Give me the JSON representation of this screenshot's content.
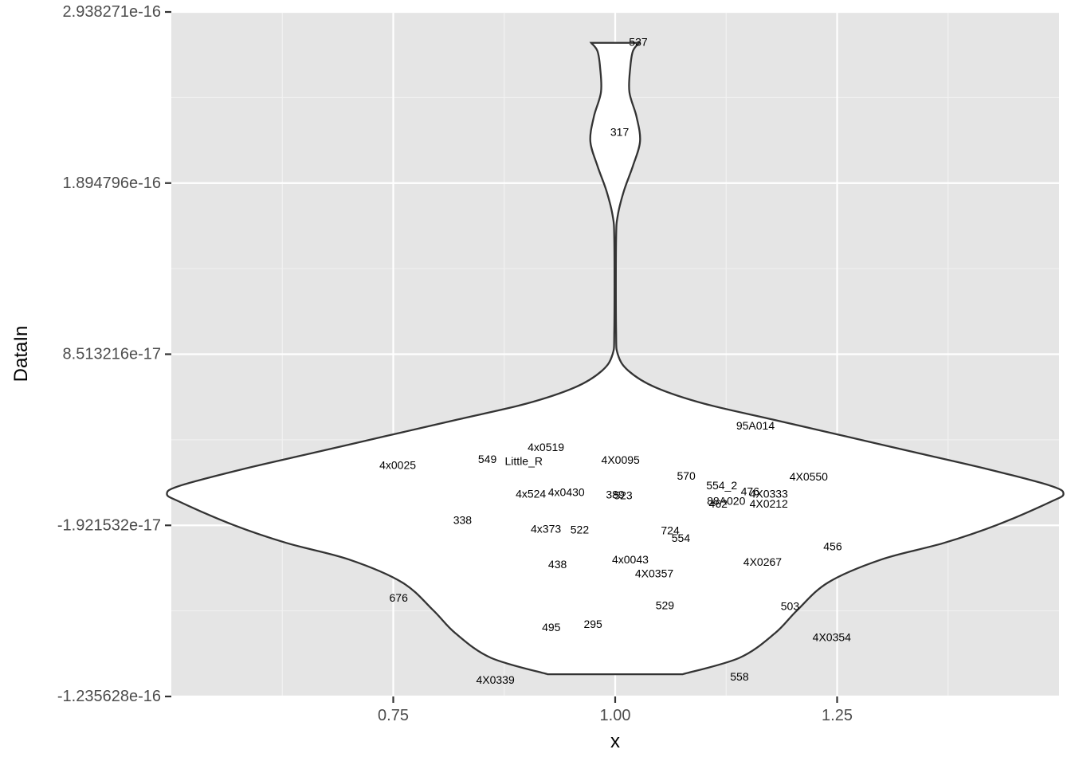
{
  "chart_data": {
    "type": "violin",
    "title": "",
    "xlabel": "x",
    "ylabel": "DataIn",
    "xlim": [
      0.5,
      1.5
    ],
    "ylim": [
      -1.235628e-16,
      2.938271e-16
    ],
    "x_ticks": [
      {
        "value": 0.75,
        "label": "0.75"
      },
      {
        "value": 1.0,
        "label": "1.00"
      },
      {
        "value": 1.25,
        "label": "1.25"
      }
    ],
    "y_ticks": [
      {
        "value": -1.235628e-16,
        "label": "-1.235628e-16"
      },
      {
        "value": -1.921532e-17,
        "label": "-1.921532e-17"
      },
      {
        "value": 8.513216e-17,
        "label": "8.513216e-17"
      },
      {
        "value": 1.894796e-16,
        "label": "1.894796e-16"
      },
      {
        "value": 2.938271e-16,
        "label": "2.938271e-16"
      }
    ],
    "violin": {
      "center_x": 1.0,
      "profile": [
        {
          "y": -1.1e-16,
          "w": 0.076
        },
        {
          "y": -1e-16,
          "w": 0.14
        },
        {
          "y": -8.5e-17,
          "w": 0.18
        },
        {
          "y": -7.1e-17,
          "w": 0.205
        },
        {
          "y": -5.4e-17,
          "w": 0.24
        },
        {
          "y": -4e-17,
          "w": 0.3
        },
        {
          "y": -3e-17,
          "w": 0.37
        },
        {
          "y": -1.9e-17,
          "w": 0.43
        },
        {
          "y": -5e-18,
          "w": 0.49
        },
        {
          "y": 0.0,
          "w": 0.505
        },
        {
          "y": 5e-18,
          "w": 0.49
        },
        {
          "y": 1.5e-17,
          "w": 0.42
        },
        {
          "y": 2.5e-17,
          "w": 0.34
        },
        {
          "y": 3.5e-17,
          "w": 0.26
        },
        {
          "y": 4.5e-17,
          "w": 0.18
        },
        {
          "y": 5.5e-17,
          "w": 0.1
        },
        {
          "y": 6.5e-17,
          "w": 0.045
        },
        {
          "y": 7.5e-17,
          "w": 0.015
        },
        {
          "y": 8.5e-17,
          "w": 0.003
        },
        {
          "y": 1e-16,
          "w": 0.001
        },
        {
          "y": 1.55e-16,
          "w": 0.001
        },
        {
          "y": 1.7e-16,
          "w": 0.003
        },
        {
          "y": 1.85e-16,
          "w": 0.01
        },
        {
          "y": 2e-16,
          "w": 0.02
        },
        {
          "y": 2.15e-16,
          "w": 0.028
        },
        {
          "y": 2.3e-16,
          "w": 0.024
        },
        {
          "y": 2.45e-16,
          "w": 0.016
        },
        {
          "y": 2.6e-16,
          "w": 0.017
        },
        {
          "y": 2.7e-16,
          "w": 0.02
        },
        {
          "y": 2.75e-16,
          "w": 0.027
        }
      ]
    },
    "points": [
      {
        "label": "537",
        "x": 1.026,
        "y": 2.75e-16
      },
      {
        "label": "317",
        "x": 1.005,
        "y": 2.2e-16
      },
      {
        "label": "95A014",
        "x": 1.158,
        "y": 4.1e-17
      },
      {
        "label": "4x0519",
        "x": 0.922,
        "y": 2.8e-17
      },
      {
        "label": "549",
        "x": 0.856,
        "y": 2.05e-17
      },
      {
        "label": "Little_R",
        "x": 0.897,
        "y": 1.95e-17
      },
      {
        "label": "4X0095",
        "x": 1.006,
        "y": 2e-17
      },
      {
        "label": "4x0025",
        "x": 0.755,
        "y": 1.7e-17
      },
      {
        "label": "570",
        "x": 1.08,
        "y": 1.05e-17
      },
      {
        "label": "4X0550",
        "x": 1.218,
        "y": 1e-17
      },
      {
        "label": "554_2",
        "x": 1.12,
        "y": 4.5e-18
      },
      {
        "label": "476",
        "x": 1.152,
        "y": 1e-18
      },
      {
        "label": "4X0333",
        "x": 1.173,
        "y": -5e-19
      },
      {
        "label": "4x524",
        "x": 0.905,
        "y": -5e-19
      },
      {
        "label": "4x0430",
        "x": 0.945,
        "y": 5e-19
      },
      {
        "label": "389",
        "x": 1.0,
        "y": -1e-18
      },
      {
        "label": "523",
        "x": 1.009,
        "y": -1.5e-18
      },
      {
        "label": "88A020",
        "x": 1.125,
        "y": -5e-18
      },
      {
        "label": "462",
        "x": 1.116,
        "y": -6.5e-18
      },
      {
        "label": "4X0212",
        "x": 1.173,
        "y": -6.5e-18
      },
      {
        "label": "338",
        "x": 0.828,
        "y": -1.65e-17
      },
      {
        "label": "4x373",
        "x": 0.922,
        "y": -2.2e-17
      },
      {
        "label": "522",
        "x": 0.96,
        "y": -2.25e-17
      },
      {
        "label": "724",
        "x": 1.062,
        "y": -2.3e-17
      },
      {
        "label": "554",
        "x": 1.074,
        "y": -2.75e-17
      },
      {
        "label": "456",
        "x": 1.245,
        "y": -3.25e-17
      },
      {
        "label": "438",
        "x": 0.935,
        "y": -4.35e-17
      },
      {
        "label": "4x0043",
        "x": 1.017,
        "y": -4.05e-17
      },
      {
        "label": "4X0267",
        "x": 1.166,
        "y": -4.2e-17
      },
      {
        "label": "4X0357",
        "x": 1.044,
        "y": -4.9e-17
      },
      {
        "label": "676",
        "x": 0.756,
        "y": -6.4e-17
      },
      {
        "label": "529",
        "x": 1.056,
        "y": -6.85e-17
      },
      {
        "label": "503",
        "x": 1.197,
        "y": -6.9e-17
      },
      {
        "label": "495",
        "x": 0.928,
        "y": -8.2e-17
      },
      {
        "label": "295",
        "x": 0.975,
        "y": -8e-17
      },
      {
        "label": "4X0354",
        "x": 1.244,
        "y": -8.8e-17
      },
      {
        "label": "4X0339",
        "x": 0.865,
        "y": -1.14e-16
      },
      {
        "label": "558",
        "x": 1.14,
        "y": -1.12e-16
      }
    ]
  }
}
